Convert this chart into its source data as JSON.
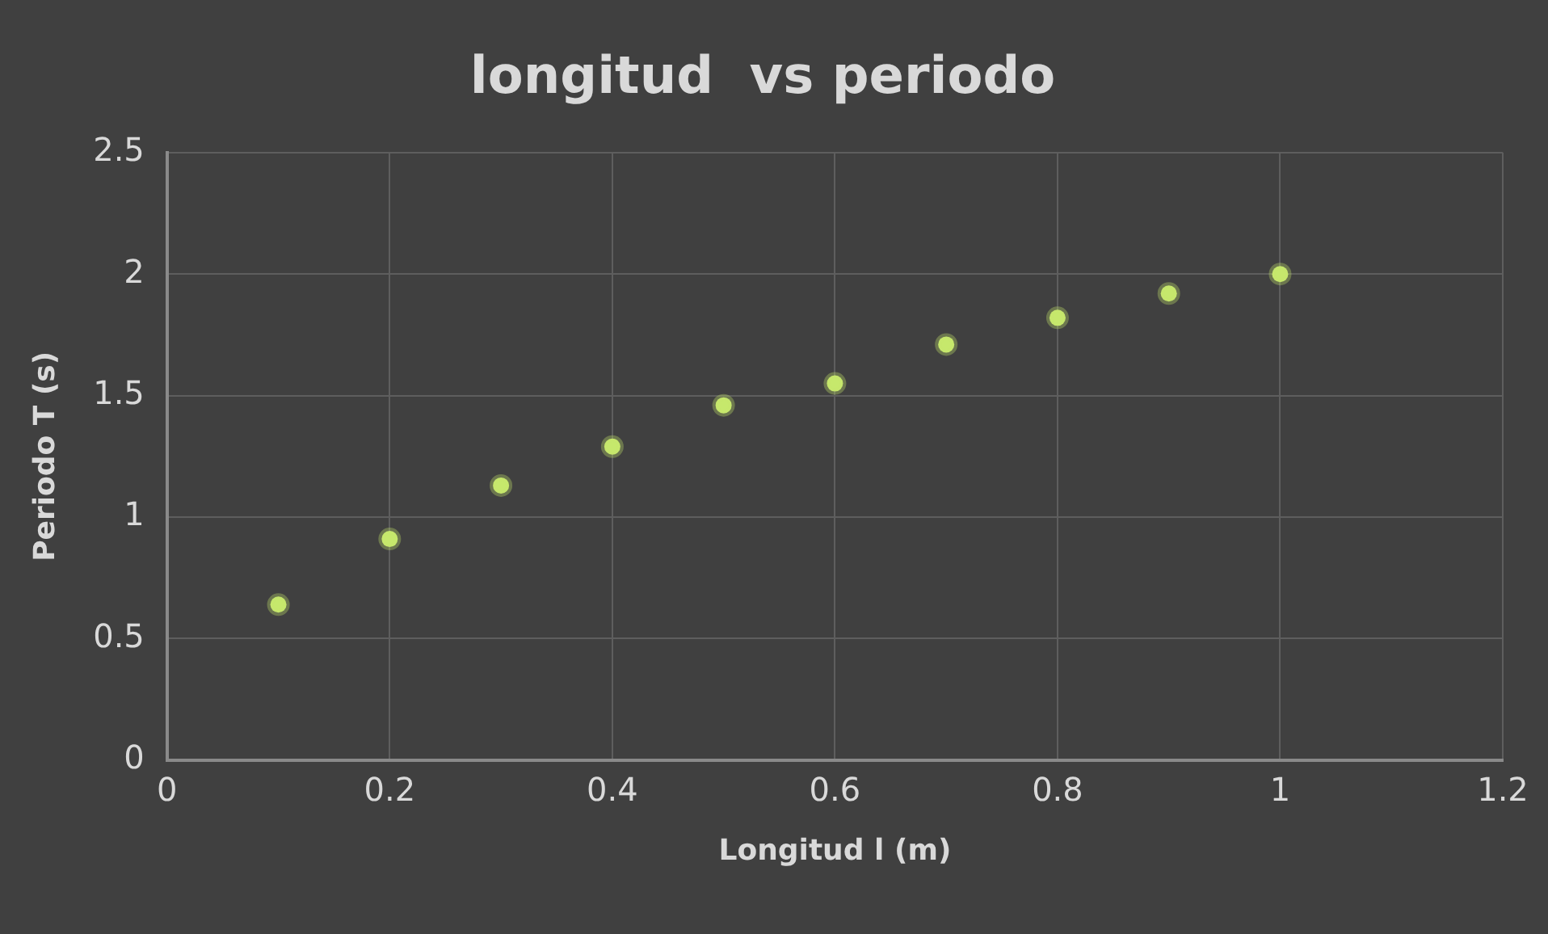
{
  "chart_data": {
    "type": "scatter",
    "title": "longitud  vs periodo",
    "xlabel": "Longitud l (m)",
    "ylabel": "Periodo T (s)",
    "x": [
      0.1,
      0.2,
      0.3,
      0.4,
      0.5,
      0.6,
      0.7,
      0.8,
      0.9,
      1.0
    ],
    "series": [
      {
        "color": "#c6e86c",
        "values": [
          0.64,
          0.91,
          1.13,
          1.29,
          1.46,
          1.55,
          1.71,
          1.82,
          1.92,
          2.0
        ]
      }
    ],
    "xlim": [
      0,
      1.2
    ],
    "xticks": [
      0,
      0.2,
      0.4,
      0.6,
      0.8,
      1,
      1.2
    ],
    "ylim": [
      0,
      2.5
    ],
    "yticks": [
      0,
      0.5,
      1,
      1.5,
      2,
      2.5
    ],
    "grid": true,
    "legend": false,
    "marker": "circle"
  }
}
